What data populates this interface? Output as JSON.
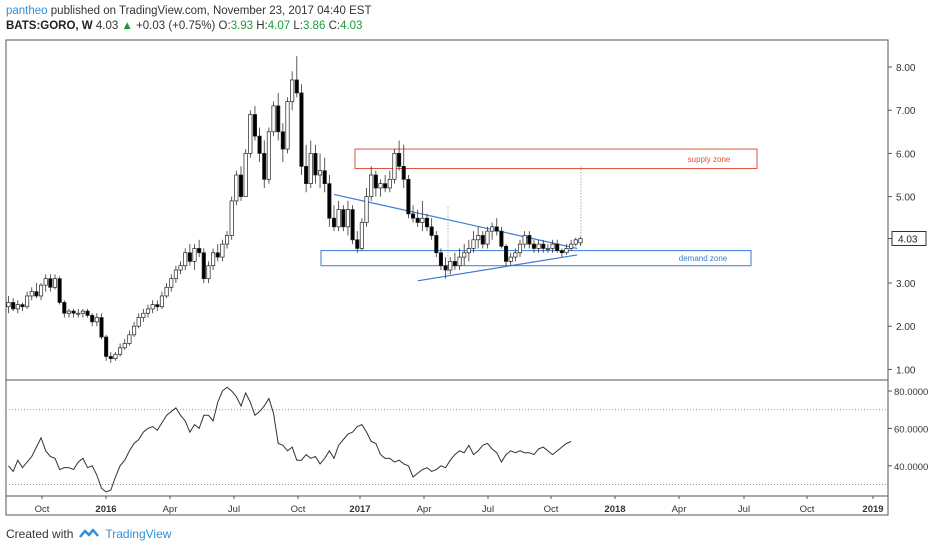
{
  "header": {
    "author": "pantheo",
    "published": "published on TradingView.com, November 23, 2017 04:40 EST",
    "symbol": "BATS:GORO, W",
    "last": "4.03",
    "change": "+0.03 (+0.75%)",
    "o_label": "O:",
    "o_value": "3.93",
    "h_label": "H:",
    "h_value": "4.07",
    "l_label": "L:",
    "l_value": "3.86",
    "c_label": "C:",
    "c_value": "4.03"
  },
  "footer": {
    "created_with": "Created with",
    "brand": "TradingView"
  },
  "colors": {
    "up": "#ffffff",
    "down": "#000000",
    "wick": "#333333",
    "trend": "#3a7bd5",
    "supply": "#e0533a",
    "demand": "#3a7bd5",
    "rsi": "#333333"
  },
  "chart_data": [
    {
      "type": "candlestick",
      "title": "",
      "x_labels": [
        "Oct",
        "2016",
        "Apr",
        "Jul",
        "Oct",
        "2017",
        "Apr",
        "Jul",
        "Oct",
        "2018",
        "Apr",
        "Jul",
        "Oct",
        "2019"
      ],
      "y_ticks": [
        "8.00",
        "7.00",
        "6.00",
        "5.00",
        "4.03",
        "3.00",
        "2.00",
        "1.00"
      ],
      "ylim": [
        0.7,
        9.0
      ],
      "last_price": "4.03",
      "candles": [
        [
          2.45,
          2.7,
          2.3,
          2.55
        ],
        [
          2.55,
          2.65,
          2.35,
          2.4
        ],
        [
          2.4,
          2.6,
          2.3,
          2.5
        ],
        [
          2.5,
          2.55,
          2.35,
          2.45
        ],
        [
          2.45,
          2.8,
          2.4,
          2.7
        ],
        [
          2.7,
          2.9,
          2.6,
          2.8
        ],
        [
          2.8,
          3.0,
          2.65,
          2.7
        ],
        [
          2.7,
          3.0,
          2.6,
          2.95
        ],
        [
          2.95,
          3.2,
          2.8,
          3.1
        ],
        [
          3.1,
          3.2,
          2.8,
          2.9
        ],
        [
          2.9,
          3.2,
          2.85,
          3.1
        ],
        [
          3.1,
          3.15,
          2.5,
          2.55
        ],
        [
          2.55,
          2.6,
          2.2,
          2.3
        ],
        [
          2.3,
          2.4,
          2.2,
          2.35
        ],
        [
          2.35,
          2.4,
          2.2,
          2.3
        ],
        [
          2.3,
          2.4,
          2.2,
          2.3
        ],
        [
          2.3,
          2.4,
          2.2,
          2.35
        ],
        [
          2.35,
          2.4,
          2.2,
          2.25
        ],
        [
          2.25,
          2.3,
          2.0,
          2.1
        ],
        [
          2.1,
          2.3,
          2.0,
          2.2
        ],
        [
          2.2,
          2.3,
          1.7,
          1.75
        ],
        [
          1.75,
          1.8,
          1.2,
          1.3
        ],
        [
          1.3,
          1.4,
          1.15,
          1.25
        ],
        [
          1.25,
          1.4,
          1.2,
          1.35
        ],
        [
          1.35,
          1.6,
          1.3,
          1.5
        ],
        [
          1.5,
          1.7,
          1.45,
          1.6
        ],
        [
          1.6,
          1.9,
          1.55,
          1.8
        ],
        [
          1.8,
          2.1,
          1.75,
          2.0
        ],
        [
          2.0,
          2.3,
          1.95,
          2.2
        ],
        [
          2.2,
          2.4,
          2.1,
          2.3
        ],
        [
          2.3,
          2.5,
          2.2,
          2.4
        ],
        [
          2.4,
          2.6,
          2.3,
          2.5
        ],
        [
          2.5,
          2.6,
          2.35,
          2.45
        ],
        [
          2.45,
          2.8,
          2.4,
          2.7
        ],
        [
          2.7,
          3.0,
          2.65,
          2.9
        ],
        [
          2.9,
          3.2,
          2.8,
          3.1
        ],
        [
          3.1,
          3.4,
          3.0,
          3.3
        ],
        [
          3.3,
          3.5,
          3.2,
          3.4
        ],
        [
          3.4,
          3.8,
          3.3,
          3.7
        ],
        [
          3.7,
          3.9,
          3.4,
          3.5
        ],
        [
          3.5,
          3.9,
          3.3,
          3.8
        ],
        [
          3.8,
          4.0,
          3.6,
          3.7
        ],
        [
          3.7,
          3.8,
          3.0,
          3.1
        ],
        [
          3.1,
          3.5,
          3.0,
          3.4
        ],
        [
          3.4,
          3.8,
          3.3,
          3.7
        ],
        [
          3.7,
          3.9,
          3.5,
          3.6
        ],
        [
          3.6,
          4.0,
          3.5,
          3.9
        ],
        [
          3.9,
          4.2,
          3.8,
          4.1
        ],
        [
          4.1,
          5.0,
          4.0,
          4.9
        ],
        [
          4.9,
          5.6,
          4.8,
          5.5
        ],
        [
          5.5,
          5.7,
          4.9,
          5.0
        ],
        [
          5.0,
          6.1,
          5.0,
          6.0
        ],
        [
          6.0,
          7.0,
          5.9,
          6.9
        ],
        [
          6.9,
          7.1,
          6.3,
          6.4
        ],
        [
          6.4,
          6.6,
          5.8,
          6.0
        ],
        [
          6.0,
          6.3,
          5.2,
          5.4
        ],
        [
          5.4,
          6.6,
          5.3,
          6.5
        ],
        [
          6.5,
          7.2,
          6.4,
          7.1
        ],
        [
          7.1,
          7.4,
          6.3,
          6.5
        ],
        [
          6.5,
          6.7,
          5.8,
          6.1
        ],
        [
          6.1,
          7.3,
          6.0,
          7.2
        ],
        [
          7.2,
          7.9,
          7.0,
          7.7
        ],
        [
          7.7,
          8.25,
          7.3,
          7.4
        ],
        [
          7.4,
          7.6,
          5.5,
          5.7
        ],
        [
          5.7,
          6.2,
          5.1,
          5.3
        ],
        [
          5.3,
          6.3,
          5.2,
          6.0
        ],
        [
          6.0,
          6.2,
          5.3,
          5.5
        ],
        [
          5.5,
          6.0,
          5.2,
          5.6
        ],
        [
          5.6,
          5.9,
          5.1,
          5.3
        ],
        [
          5.3,
          5.5,
          4.3,
          4.5
        ],
        [
          4.5,
          4.8,
          4.2,
          4.3
        ],
        [
          4.3,
          4.9,
          4.2,
          4.7
        ],
        [
          4.7,
          4.8,
          4.2,
          4.3
        ],
        [
          4.3,
          4.9,
          4.1,
          4.7
        ],
        [
          4.7,
          4.8,
          3.9,
          4.0
        ],
        [
          4.0,
          4.2,
          3.7,
          3.8
        ],
        [
          3.8,
          4.5,
          3.75,
          4.4
        ],
        [
          4.4,
          5.2,
          4.3,
          5.0
        ],
        [
          5.0,
          5.7,
          4.9,
          5.5
        ],
        [
          5.5,
          5.6,
          5.0,
          5.2
        ],
        [
          5.2,
          5.4,
          5.0,
          5.3
        ],
        [
          5.3,
          5.5,
          5.1,
          5.2
        ],
        [
          5.2,
          5.6,
          5.1,
          5.4
        ],
        [
          5.4,
          6.1,
          5.3,
          6.0
        ],
        [
          6.0,
          6.3,
          5.6,
          5.7
        ],
        [
          5.7,
          6.2,
          5.2,
          5.4
        ],
        [
          5.4,
          5.5,
          4.5,
          4.6
        ],
        [
          4.6,
          4.8,
          4.4,
          4.5
        ],
        [
          4.5,
          4.7,
          4.3,
          4.4
        ],
        [
          4.4,
          4.9,
          4.2,
          4.5
        ],
        [
          4.5,
          4.6,
          4.2,
          4.3
        ],
        [
          4.3,
          4.5,
          4.0,
          4.1
        ],
        [
          4.1,
          4.2,
          3.6,
          3.7
        ],
        [
          3.7,
          3.8,
          3.3,
          3.4
        ],
        [
          3.4,
          3.6,
          3.1,
          3.3
        ],
        [
          3.3,
          3.6,
          3.2,
          3.5
        ],
        [
          3.5,
          3.7,
          3.3,
          3.4
        ],
        [
          3.4,
          3.8,
          3.3,
          3.6
        ],
        [
          3.6,
          3.9,
          3.4,
          3.7
        ],
        [
          3.7,
          4.0,
          3.5,
          3.8
        ],
        [
          3.8,
          4.2,
          3.7,
          4.0
        ],
        [
          4.0,
          4.3,
          3.8,
          4.1
        ],
        [
          4.1,
          4.2,
          3.8,
          3.9
        ],
        [
          3.9,
          4.3,
          3.8,
          4.2
        ],
        [
          4.2,
          4.4,
          4.0,
          4.3
        ],
        [
          4.3,
          4.5,
          4.1,
          4.2
        ],
        [
          4.2,
          4.3,
          3.8,
          3.85
        ],
        [
          3.85,
          3.9,
          3.4,
          3.5
        ],
        [
          3.5,
          3.7,
          3.4,
          3.6
        ],
        [
          3.6,
          3.8,
          3.5,
          3.7
        ],
        [
          3.7,
          4.0,
          3.6,
          3.9
        ],
        [
          3.9,
          4.2,
          3.8,
          4.1
        ],
        [
          4.1,
          4.2,
          3.8,
          3.9
        ],
        [
          3.9,
          4.0,
          3.7,
          3.8
        ],
        [
          3.8,
          4.0,
          3.7,
          3.9
        ],
        [
          3.9,
          4.0,
          3.7,
          3.8
        ],
        [
          3.8,
          3.9,
          3.7,
          3.8
        ],
        [
          3.8,
          4.0,
          3.7,
          3.9
        ],
        [
          3.9,
          4.0,
          3.7,
          3.75
        ],
        [
          3.75,
          3.8,
          3.6,
          3.7
        ],
        [
          3.7,
          3.9,
          3.65,
          3.8
        ],
        [
          3.8,
          4.0,
          3.75,
          3.9
        ],
        [
          3.9,
          4.05,
          3.85,
          4.0
        ],
        [
          3.93,
          4.07,
          3.86,
          4.03
        ]
      ],
      "annotations": [
        {
          "label": "supply zone",
          "y_low": 5.65,
          "y_high": 6.1
        },
        {
          "label": "demand zone",
          "y_low": 3.4,
          "y_high": 3.75
        }
      ],
      "trendlines": [
        {
          "from": [
            70,
            5.05
          ],
          "to": [
            121,
            3.8
          ]
        },
        {
          "from": [
            88,
            3.05
          ],
          "to": [
            121,
            3.65
          ]
        }
      ]
    },
    {
      "type": "line",
      "title": "",
      "y_ticks": [
        "80.0000",
        "60.0000",
        "40.0000"
      ],
      "ylim": [
        20,
        88
      ],
      "reference_lines": [
        70,
        30
      ],
      "values": [
        40,
        37,
        43,
        39,
        42,
        45,
        50,
        55,
        48,
        45,
        44,
        38,
        39,
        39,
        38,
        42,
        44,
        39,
        40,
        35,
        28,
        26,
        27,
        34,
        40,
        43,
        48,
        52,
        54,
        58,
        60,
        61,
        59,
        63,
        67,
        69,
        71,
        67,
        64,
        58,
        62,
        60,
        67,
        67,
        64,
        74,
        80,
        82,
        80,
        77,
        72,
        79,
        74,
        67,
        69,
        72,
        76,
        68,
        52,
        51,
        48,
        50,
        43,
        43,
        46,
        44,
        45,
        41,
        44,
        48,
        44,
        51,
        54,
        57,
        58,
        61,
        62,
        58,
        53,
        52,
        46,
        44,
        44,
        42,
        43,
        41,
        40,
        34,
        36,
        38,
        39,
        37,
        38,
        40,
        39,
        43,
        46,
        48,
        47,
        51,
        46,
        48,
        51,
        52,
        49,
        47,
        42,
        46,
        48,
        47,
        48,
        47,
        47,
        46,
        49,
        50,
        48,
        46,
        48,
        50,
        52,
        53
      ]
    }
  ]
}
